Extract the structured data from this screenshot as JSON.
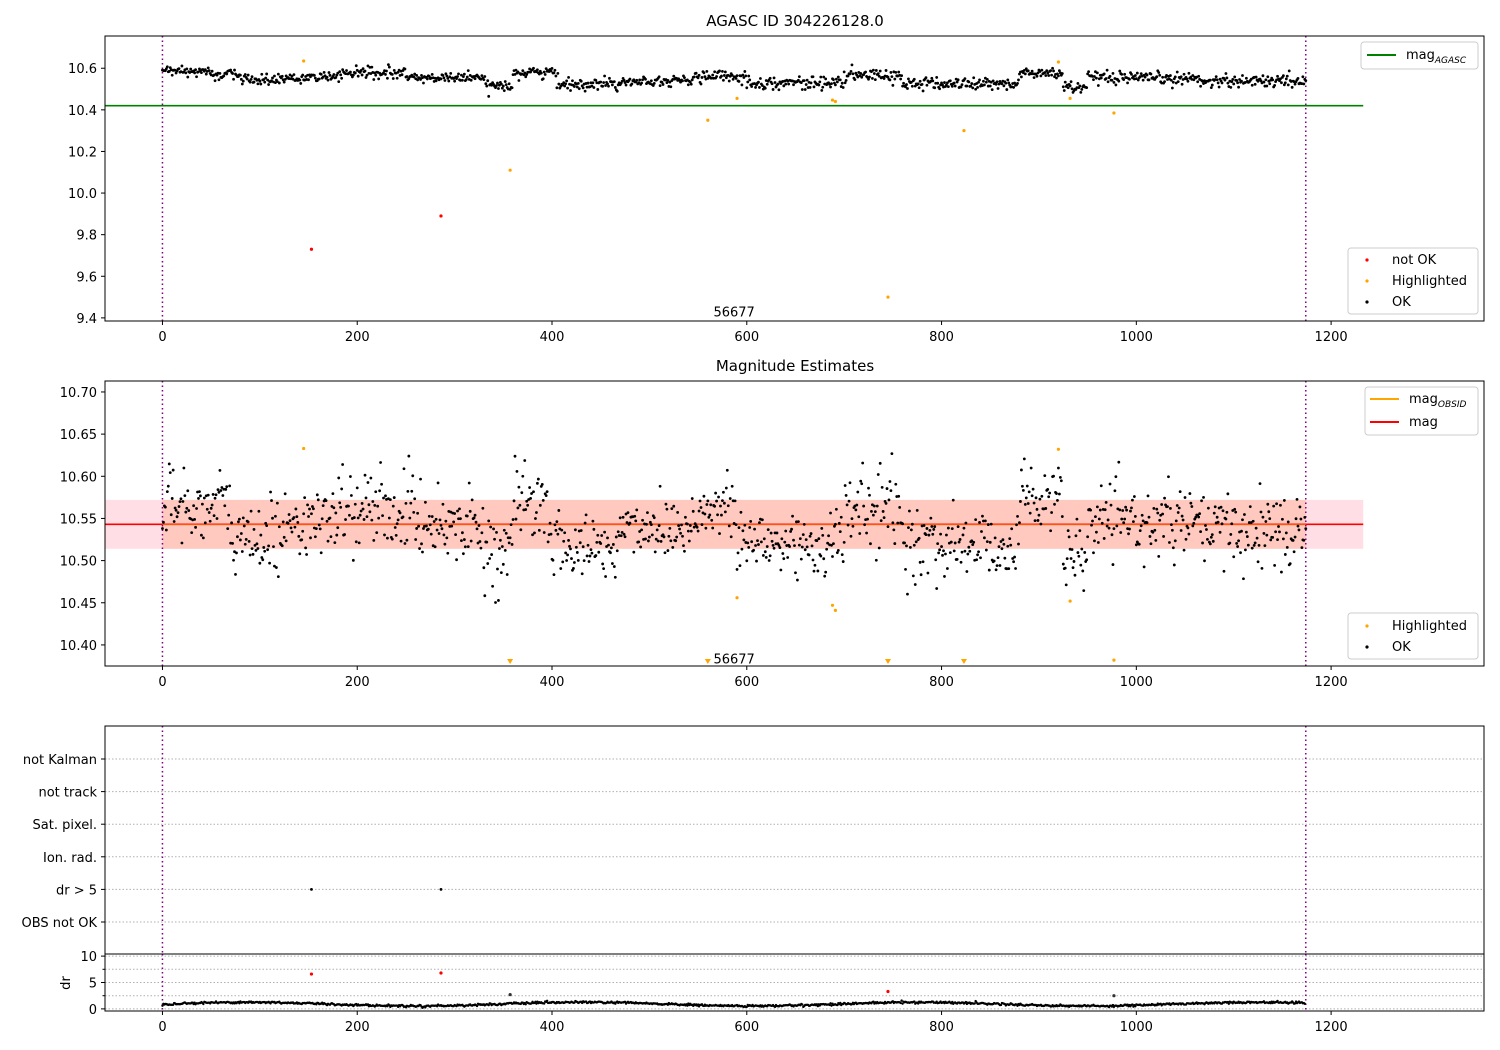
{
  "chart_data": [
    {
      "type": "scatter",
      "title": "AGASC ID 304226128.0",
      "xlim": [
        -59,
        1357
      ],
      "ylim": [
        9.385,
        10.755
      ],
      "xticks": [
        0,
        200,
        400,
        600,
        800,
        1000,
        1200
      ],
      "yticks": [
        9.4,
        9.6,
        9.8,
        10.0,
        10.2,
        10.4,
        10.6
      ],
      "ytick_labels": [
        "9.4",
        "9.6",
        "9.8",
        "10.0",
        "10.2",
        "10.4",
        "10.6"
      ],
      "obsid_boundaries": [
        0,
        1174
      ],
      "obsid_label": {
        "text": "56677",
        "x": 587,
        "y": 9.43
      },
      "hline": {
        "name_main": "mag",
        "name_sub": "AGASC",
        "y": 10.42,
        "x_range": [
          -59,
          1233
        ],
        "color": "#008000"
      },
      "ok_bands": [
        {
          "x": [
            0,
            50
          ],
          "center": 10.585,
          "spread": 0.015
        },
        {
          "x": [
            50,
            80
          ],
          "center": 10.57,
          "spread": 0.02
        },
        {
          "x": [
            80,
            125
          ],
          "center": 10.545,
          "spread": 0.02
        },
        {
          "x": [
            125,
            180
          ],
          "center": 10.555,
          "spread": 0.015
        },
        {
          "x": [
            180,
            250
          ],
          "center": 10.575,
          "spread": 0.02
        },
        {
          "x": [
            250,
            330
          ],
          "center": 10.555,
          "spread": 0.015
        },
        {
          "x": [
            330,
            360
          ],
          "center": 10.52,
          "spread": 0.02
        },
        {
          "x": [
            360,
            405
          ],
          "center": 10.58,
          "spread": 0.02
        },
        {
          "x": [
            405,
            470
          ],
          "center": 10.525,
          "spread": 0.02
        },
        {
          "x": [
            470,
            545
          ],
          "center": 10.54,
          "spread": 0.015
        },
        {
          "x": [
            545,
            600
          ],
          "center": 10.56,
          "spread": 0.02
        },
        {
          "x": [
            600,
            700
          ],
          "center": 10.53,
          "spread": 0.02
        },
        {
          "x": [
            700,
            760
          ],
          "center": 10.565,
          "spread": 0.02
        },
        {
          "x": [
            760,
            880
          ],
          "center": 10.525,
          "spread": 0.02
        },
        {
          "x": [
            880,
            925
          ],
          "center": 10.575,
          "spread": 0.02
        },
        {
          "x": [
            925,
            950
          ],
          "center": 10.51,
          "spread": 0.02
        },
        {
          "x": [
            950,
            1065
          ],
          "center": 10.55,
          "spread": 0.02
        },
        {
          "x": [
            1065,
            1175
          ],
          "center": 10.54,
          "spread": 0.02
        }
      ],
      "highlighted": [
        {
          "x": 145,
          "y": 10.635
        },
        {
          "x": 357,
          "y": 10.11
        },
        {
          "x": 560,
          "y": 10.35
        },
        {
          "x": 590,
          "y": 10.455
        },
        {
          "x": 688,
          "y": 10.447
        },
        {
          "x": 691,
          "y": 10.44
        },
        {
          "x": 745,
          "y": 9.5
        },
        {
          "x": 823,
          "y": 10.3
        },
        {
          "x": 920,
          "y": 10.63
        },
        {
          "x": 932,
          "y": 10.455
        },
        {
          "x": 977,
          "y": 10.385
        }
      ],
      "not_ok": [
        {
          "x": 153,
          "y": 9.73
        },
        {
          "x": 286,
          "y": 9.89
        }
      ],
      "legend_line": "top-right",
      "legend_points": [
        {
          "label": "not OK",
          "color": "#ff0000"
        },
        {
          "label": "Highlighted",
          "color": "#ffa500"
        },
        {
          "label": "OK",
          "color": "#000000"
        }
      ]
    },
    {
      "type": "scatter",
      "title": "Magnitude Estimates",
      "xlim": [
        -59,
        1357
      ],
      "ylim": [
        10.375,
        10.713
      ],
      "xticks": [
        0,
        200,
        400,
        600,
        800,
        1000,
        1200
      ],
      "yticks": [
        10.4,
        10.45,
        10.5,
        10.55,
        10.6,
        10.65,
        10.7
      ],
      "ytick_labels": [
        "10.40",
        "10.45",
        "10.50",
        "10.55",
        "10.60",
        "10.65",
        "10.70"
      ],
      "obsid_boundaries": [
        0,
        1174
      ],
      "obsid_label": {
        "text": "56677",
        "x": 587,
        "y": 10.384
      },
      "mag_line": {
        "name": "mag",
        "y": 10.543,
        "x_range": [
          -59,
          1233
        ],
        "color": "#ff0000"
      },
      "mag_band": {
        "y": [
          10.514,
          10.572
        ],
        "x_range": [
          -59,
          1233
        ]
      },
      "mag_obsid": {
        "name_main": "mag",
        "name_sub": "OBSID",
        "y": 10.543,
        "x_range": [
          0,
          1174
        ],
        "color": "#ffa500"
      },
      "ok_bands": [
        {
          "x": [
            0,
            70
          ],
          "center": 10.565,
          "spread": 0.03
        },
        {
          "x": [
            70,
            120
          ],
          "center": 10.525,
          "spread": 0.03
        },
        {
          "x": [
            120,
            180
          ],
          "center": 10.545,
          "spread": 0.025
        },
        {
          "x": [
            180,
            260
          ],
          "center": 10.56,
          "spread": 0.03
        },
        {
          "x": [
            260,
            330
          ],
          "center": 10.545,
          "spread": 0.025
        },
        {
          "x": [
            330,
            360
          ],
          "center": 10.51,
          "spread": 0.03
        },
        {
          "x": [
            360,
            400
          ],
          "center": 10.565,
          "spread": 0.03
        },
        {
          "x": [
            400,
            470
          ],
          "center": 10.515,
          "spread": 0.025
        },
        {
          "x": [
            470,
            545
          ],
          "center": 10.54,
          "spread": 0.025
        },
        {
          "x": [
            545,
            590
          ],
          "center": 10.56,
          "spread": 0.025
        },
        {
          "x": [
            590,
            700
          ],
          "center": 10.52,
          "spread": 0.03
        },
        {
          "x": [
            700,
            760
          ],
          "center": 10.56,
          "spread": 0.03
        },
        {
          "x": [
            760,
            880
          ],
          "center": 10.52,
          "spread": 0.03
        },
        {
          "x": [
            880,
            925
          ],
          "center": 10.575,
          "spread": 0.025
        },
        {
          "x": [
            925,
            950
          ],
          "center": 10.5,
          "spread": 0.025
        },
        {
          "x": [
            950,
            1065
          ],
          "center": 10.545,
          "spread": 0.025
        },
        {
          "x": [
            1065,
            1175
          ],
          "center": 10.535,
          "spread": 0.03
        }
      ],
      "highlighted": [
        {
          "x": 145,
          "y": 10.633
        },
        {
          "x": 590,
          "y": 10.456
        },
        {
          "x": 688,
          "y": 10.447
        },
        {
          "x": 691,
          "y": 10.441
        },
        {
          "x": 920,
          "y": 10.632
        },
        {
          "x": 932,
          "y": 10.452
        },
        {
          "x": 977,
          "y": 10.382
        }
      ],
      "below_range_markers": [
        {
          "x": 357
        },
        {
          "x": 560
        },
        {
          "x": 745
        },
        {
          "x": 823
        }
      ],
      "legend_line": "top-right",
      "legend_points": [
        {
          "label": "Highlighted",
          "color": "#ffa500"
        },
        {
          "label": "OK",
          "color": "#000000"
        }
      ]
    },
    {
      "type": "scatter",
      "title": "",
      "xlim": [
        -59,
        1357
      ],
      "categories": [
        "not Kalman",
        "not track",
        "Sat. pixel.",
        "Ion. rad.",
        "dr > 5",
        "OBS not OK"
      ],
      "obsid_boundaries": [
        0,
        1174
      ],
      "flags": [
        {
          "category": "dr > 5",
          "x": 153
        },
        {
          "category": "dr > 5",
          "x": 286
        }
      ]
    },
    {
      "type": "scatter",
      "title": "",
      "ylabel": "dr",
      "xlim": [
        -59,
        1357
      ],
      "ylim": [
        -0.4,
        10.4
      ],
      "xticks": [
        0,
        200,
        400,
        600,
        800,
        1000,
        1200
      ],
      "yticks": [
        0,
        5,
        10
      ],
      "minor_yticks": [
        2.5,
        7.5
      ],
      "obsid_boundaries": [
        0,
        1174
      ],
      "baseline": {
        "center": 0.9,
        "spread": 0.3
      },
      "not_ok": [
        {
          "x": 153,
          "y": 6.6
        },
        {
          "x": 286,
          "y": 6.8
        },
        {
          "x": 745,
          "y": 3.3
        }
      ],
      "highlighted": [
        {
          "x": 357,
          "y": 2.7
        },
        {
          "x": 977,
          "y": 2.5
        }
      ]
    }
  ]
}
